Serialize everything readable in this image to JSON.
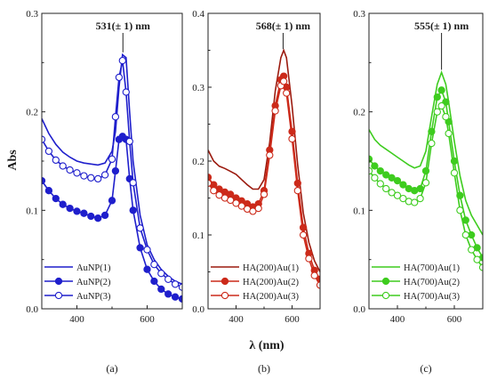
{
  "ylabel": "Abs",
  "xlabel": "λ (nm)",
  "chart_data": [
    {
      "type": "line",
      "panel_label": "(a)",
      "peak_label": "531(± 1) nm",
      "peak_x": 531,
      "xlim": [
        300,
        700
      ],
      "ylim": [
        0,
        0.3
      ],
      "xticks": [
        400,
        600
      ],
      "yticks": [
        0.0,
        0.1,
        0.2,
        0.3
      ],
      "ytick_labels": [
        "0.0",
        "0.1",
        "0.2",
        "0.3"
      ],
      "colors": [
        "#1f1fcc",
        "#1f1fcc",
        "#1f1fcc"
      ],
      "legend_position": "bottom-left",
      "series": [
        {
          "name": "AuNP(1)",
          "marker": "none",
          "x": [
            300,
            320,
            340,
            360,
            380,
            400,
            420,
            440,
            460,
            480,
            500,
            510,
            520,
            530,
            540,
            550,
            560,
            580,
            600,
            620,
            640,
            660,
            680,
            700
          ],
          "y": [
            0.193,
            0.178,
            0.167,
            0.159,
            0.154,
            0.15,
            0.148,
            0.147,
            0.146,
            0.148,
            0.16,
            0.18,
            0.225,
            0.258,
            0.255,
            0.2,
            0.15,
            0.095,
            0.065,
            0.05,
            0.04,
            0.033,
            0.028,
            0.025
          ]
        },
        {
          "name": "AuNP(2)",
          "marker": "filled",
          "x": [
            300,
            320,
            340,
            360,
            380,
            400,
            420,
            440,
            460,
            480,
            500,
            510,
            520,
            530,
            540,
            550,
            560,
            580,
            600,
            620,
            640,
            660,
            680,
            700
          ],
          "y": [
            0.13,
            0.12,
            0.112,
            0.106,
            0.102,
            0.099,
            0.097,
            0.094,
            0.092,
            0.095,
            0.11,
            0.14,
            0.172,
            0.175,
            0.172,
            0.132,
            0.1,
            0.062,
            0.04,
            0.028,
            0.02,
            0.015,
            0.012,
            0.01
          ]
        },
        {
          "name": "AuNP(3)",
          "marker": "open",
          "x": [
            300,
            320,
            340,
            360,
            380,
            400,
            420,
            440,
            460,
            480,
            500,
            510,
            520,
            530,
            540,
            550,
            560,
            580,
            600,
            620,
            640,
            660,
            680,
            700
          ],
          "y": [
            0.172,
            0.16,
            0.151,
            0.145,
            0.141,
            0.138,
            0.135,
            0.133,
            0.132,
            0.136,
            0.152,
            0.195,
            0.235,
            0.252,
            0.22,
            0.17,
            0.128,
            0.082,
            0.06,
            0.045,
            0.036,
            0.03,
            0.025,
            0.022
          ]
        }
      ]
    },
    {
      "type": "line",
      "panel_label": "(b)",
      "peak_label": "568(± 1) nm",
      "peak_x": 568,
      "xlim": [
        300,
        700
      ],
      "ylim": [
        0,
        0.4
      ],
      "xticks": [
        400,
        600
      ],
      "yticks": [
        0.0,
        0.1,
        0.2,
        0.3,
        0.4
      ],
      "ytick_labels": [
        "0.0",
        "0.1",
        "0.2",
        "0.3",
        "0.4"
      ],
      "colors": [
        "#9b1a0e",
        "#cc2a1a",
        "#cc2a1a"
      ],
      "legend_position": "bottom-left",
      "series": [
        {
          "name": "HA(200)Au(1)",
          "marker": "none",
          "x": [
            300,
            320,
            340,
            360,
            380,
            400,
            420,
            440,
            460,
            480,
            500,
            520,
            540,
            560,
            570,
            580,
            600,
            620,
            640,
            660,
            680,
            700
          ],
          "y": [
            0.215,
            0.2,
            0.193,
            0.19,
            0.186,
            0.182,
            0.175,
            0.168,
            0.162,
            0.162,
            0.175,
            0.225,
            0.295,
            0.34,
            0.35,
            0.34,
            0.275,
            0.195,
            0.13,
            0.09,
            0.065,
            0.05
          ]
        },
        {
          "name": "HA(200)Au(2)",
          "marker": "filled",
          "x": [
            300,
            320,
            340,
            360,
            380,
            400,
            420,
            440,
            460,
            480,
            500,
            520,
            540,
            560,
            570,
            580,
            600,
            620,
            640,
            660,
            680,
            700
          ],
          "y": [
            0.178,
            0.168,
            0.162,
            0.158,
            0.155,
            0.15,
            0.146,
            0.142,
            0.138,
            0.142,
            0.16,
            0.215,
            0.275,
            0.31,
            0.315,
            0.3,
            0.24,
            0.17,
            0.11,
            0.075,
            0.052,
            0.04
          ]
        },
        {
          "name": "HA(200)Au(3)",
          "marker": "open",
          "x": [
            300,
            320,
            340,
            360,
            380,
            400,
            420,
            440,
            460,
            480,
            500,
            520,
            540,
            560,
            570,
            580,
            600,
            620,
            640,
            660,
            680,
            700
          ],
          "y": [
            0.17,
            0.16,
            0.154,
            0.15,
            0.147,
            0.143,
            0.139,
            0.135,
            0.132,
            0.136,
            0.155,
            0.208,
            0.268,
            0.302,
            0.308,
            0.292,
            0.23,
            0.16,
            0.1,
            0.068,
            0.045,
            0.032
          ]
        }
      ]
    },
    {
      "type": "line",
      "panel_label": "(c)",
      "peak_label": "555(± 1) nm",
      "peak_x": 555,
      "xlim": [
        300,
        700
      ],
      "ylim": [
        0,
        0.3
      ],
      "xticks": [
        400,
        600
      ],
      "yticks": [
        0.0,
        0.1,
        0.2,
        0.3
      ],
      "ytick_labels": [
        "0.0",
        "0.1",
        "0.2",
        "0.3"
      ],
      "colors": [
        "#3ecc1f",
        "#3ecc1f",
        "#3ecc1f"
      ],
      "legend_position": "bottom-left",
      "series": [
        {
          "name": "HA(700)Au(1)",
          "marker": "none",
          "x": [
            300,
            320,
            340,
            360,
            380,
            400,
            420,
            440,
            460,
            480,
            500,
            520,
            540,
            555,
            570,
            580,
            600,
            620,
            640,
            660,
            680,
            700
          ],
          "y": [
            0.182,
            0.172,
            0.166,
            0.162,
            0.158,
            0.154,
            0.15,
            0.146,
            0.143,
            0.145,
            0.16,
            0.195,
            0.228,
            0.24,
            0.228,
            0.21,
            0.17,
            0.135,
            0.11,
            0.095,
            0.085,
            0.075
          ]
        },
        {
          "name": "HA(700)Au(2)",
          "marker": "filled",
          "x": [
            300,
            320,
            340,
            360,
            380,
            400,
            420,
            440,
            460,
            480,
            500,
            520,
            540,
            555,
            570,
            580,
            600,
            620,
            640,
            660,
            680,
            700
          ],
          "y": [
            0.152,
            0.145,
            0.14,
            0.136,
            0.133,
            0.13,
            0.126,
            0.122,
            0.12,
            0.122,
            0.14,
            0.18,
            0.215,
            0.222,
            0.21,
            0.19,
            0.15,
            0.115,
            0.09,
            0.075,
            0.062,
            0.052
          ]
        },
        {
          "name": "HA(700)Au(3)",
          "marker": "open",
          "x": [
            300,
            320,
            340,
            360,
            380,
            400,
            420,
            440,
            460,
            480,
            500,
            520,
            540,
            555,
            570,
            580,
            600,
            620,
            640,
            660,
            680,
            700
          ],
          "y": [
            0.14,
            0.133,
            0.127,
            0.122,
            0.118,
            0.115,
            0.112,
            0.109,
            0.108,
            0.112,
            0.128,
            0.168,
            0.2,
            0.206,
            0.195,
            0.178,
            0.138,
            0.1,
            0.075,
            0.06,
            0.05,
            0.042
          ]
        }
      ]
    }
  ]
}
